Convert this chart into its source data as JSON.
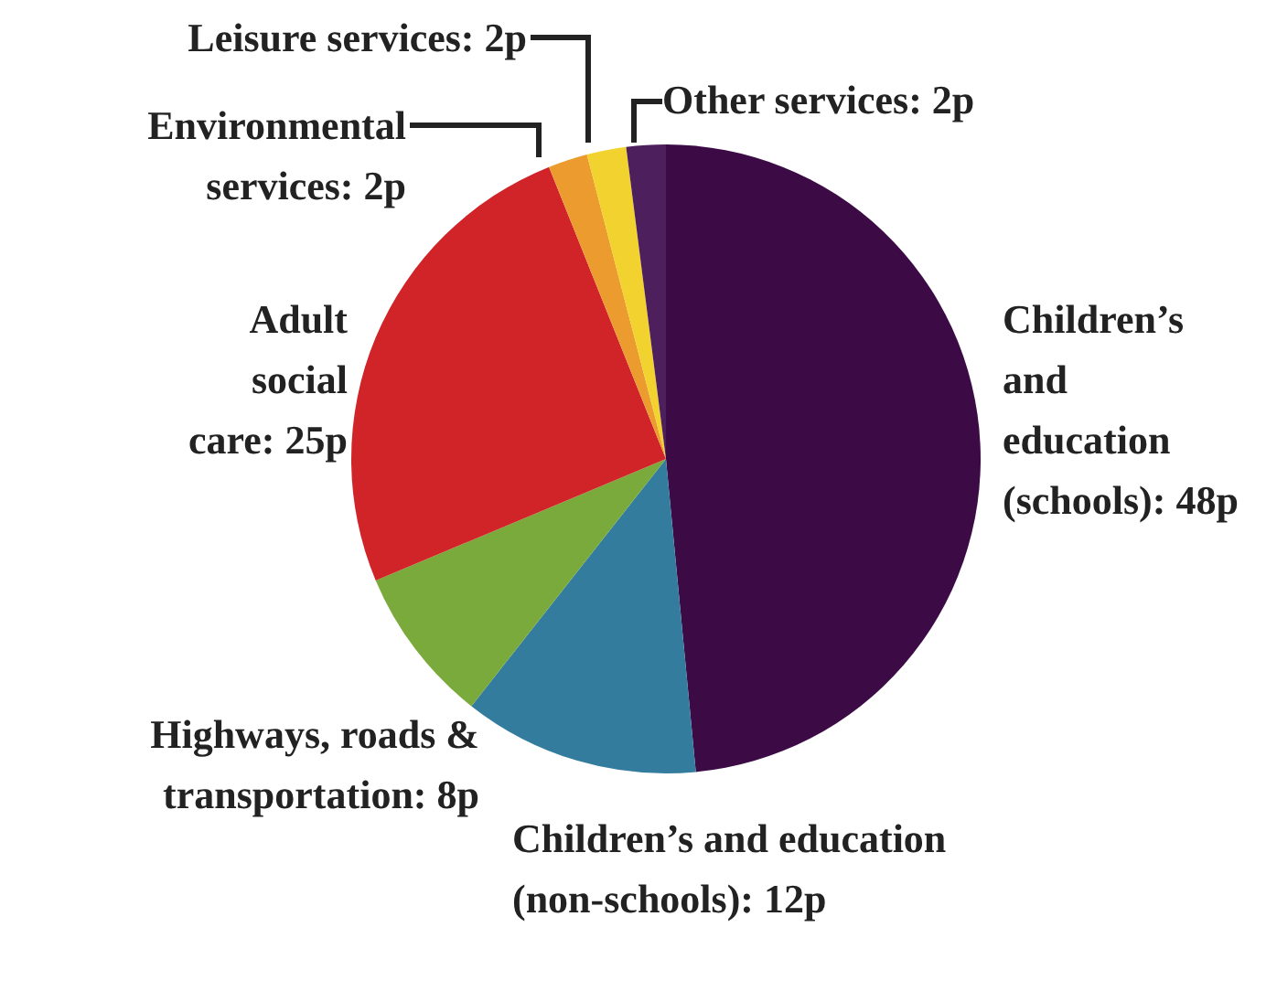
{
  "chart_data": {
    "type": "pie",
    "categories": [
      "Children’s and education (schools)",
      "Children’s and education (non-schools)",
      "Highways, roads & transportation",
      "Adult social care",
      "Environmental services",
      "Leisure services",
      "Other services"
    ],
    "values": [
      48,
      12,
      8,
      25,
      2,
      2,
      2
    ],
    "value_labels": [
      "48p",
      "12p",
      "8p",
      "25p",
      "2p",
      "2p",
      "2p"
    ],
    "colors": [
      "#3c0b46",
      "#337c9e",
      "#7aaa3c",
      "#d12429",
      "#ec9b2f",
      "#f2d22e",
      "#4d1f5c"
    ],
    "legend": false
  }
}
